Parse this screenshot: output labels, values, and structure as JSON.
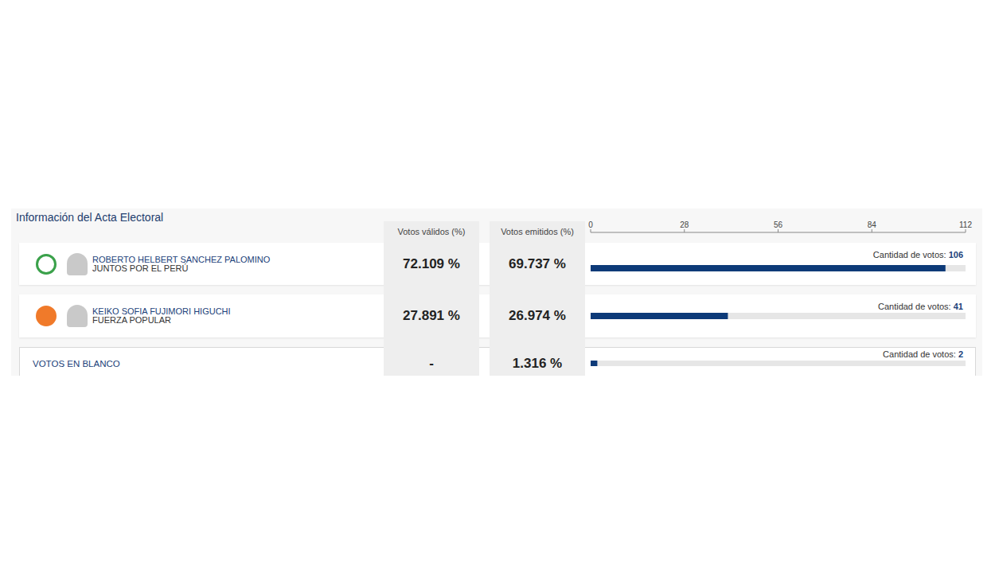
{
  "title": "Información del Acta Electoral",
  "columns": [
    "Votos válidos (%)",
    "Votos emitidos (%)"
  ],
  "votes_label": "Cantidad de votos:",
  "rows": [
    {
      "name": "ROBERTO HELBERT SANCHEZ PALOMINO",
      "party": "JUNTOS POR EL PERÚ",
      "valid": "72.109 %",
      "emitted": "69.737 %",
      "votes": 106
    },
    {
      "name": "KEIKO SOFIA FUJIMORI HIGUCHI",
      "party": "FUERZA POPULAR",
      "valid": "27.891 %",
      "emitted": "26.974 %",
      "votes": 41
    },
    {
      "name": "VOTOS EN BLANCO",
      "valid": "-",
      "emitted": "1.316 %",
      "votes": 2
    }
  ],
  "chart_data": {
    "type": "bar",
    "orientation": "horizontal",
    "xlim": [
      0,
      112
    ],
    "xticks": [
      0,
      28,
      56,
      84,
      112
    ],
    "color": "#0d3a78"
  }
}
